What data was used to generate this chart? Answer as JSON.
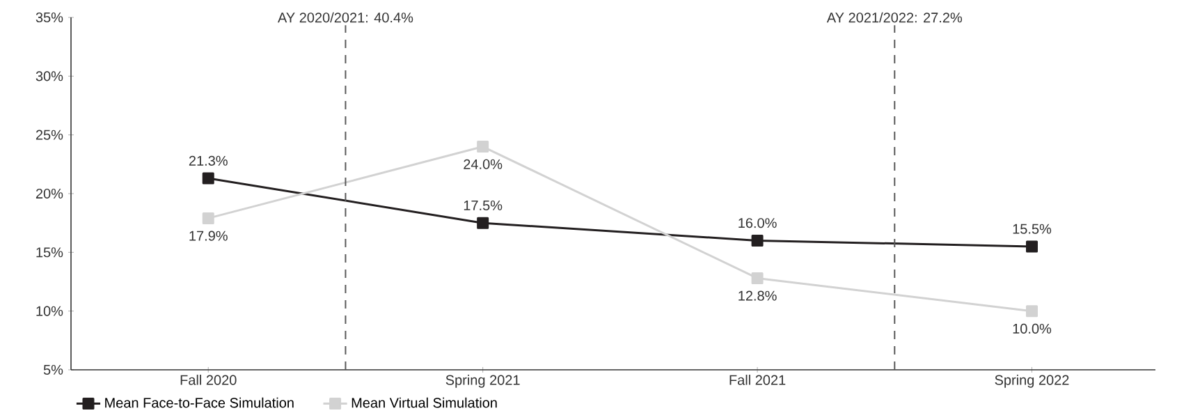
{
  "chart_data": {
    "type": "line",
    "categories": [
      "Fall 2020",
      "Spring 2021",
      "Fall 2021",
      "Spring 2022"
    ],
    "ylim": [
      5,
      35
    ],
    "yticks": [
      {
        "value": 5,
        "label": "5%"
      },
      {
        "value": 10,
        "label": "10%"
      },
      {
        "value": 15,
        "label": "15%"
      },
      {
        "value": 20,
        "label": "20%"
      },
      {
        "value": 25,
        "label": "25%"
      },
      {
        "value": 30,
        "label": "30%"
      },
      {
        "value": 35,
        "label": "35%"
      }
    ],
    "series": [
      {
        "name": "Mean Face-to-Face Simulation",
        "color": "#231f20",
        "values": [
          21.3,
          17.5,
          16.0,
          15.5
        ],
        "value_labels": [
          "21.3%",
          "17.5%",
          "16.0%",
          "15.5%"
        ]
      },
      {
        "name": "Mean Virtual Simulation",
        "color": "#d2d2d2",
        "values": [
          17.9,
          24.0,
          12.8,
          10.0
        ],
        "value_labels": [
          "17.9%",
          "24.0%",
          "12.8%",
          "10.0%"
        ]
      }
    ],
    "annotations": [
      "AY 2020/2021: 40.4%",
      "AY 2021/2022: 27.2%"
    ],
    "marker": "square",
    "line_style": "solid",
    "grid": false,
    "legend": "bottom"
  }
}
